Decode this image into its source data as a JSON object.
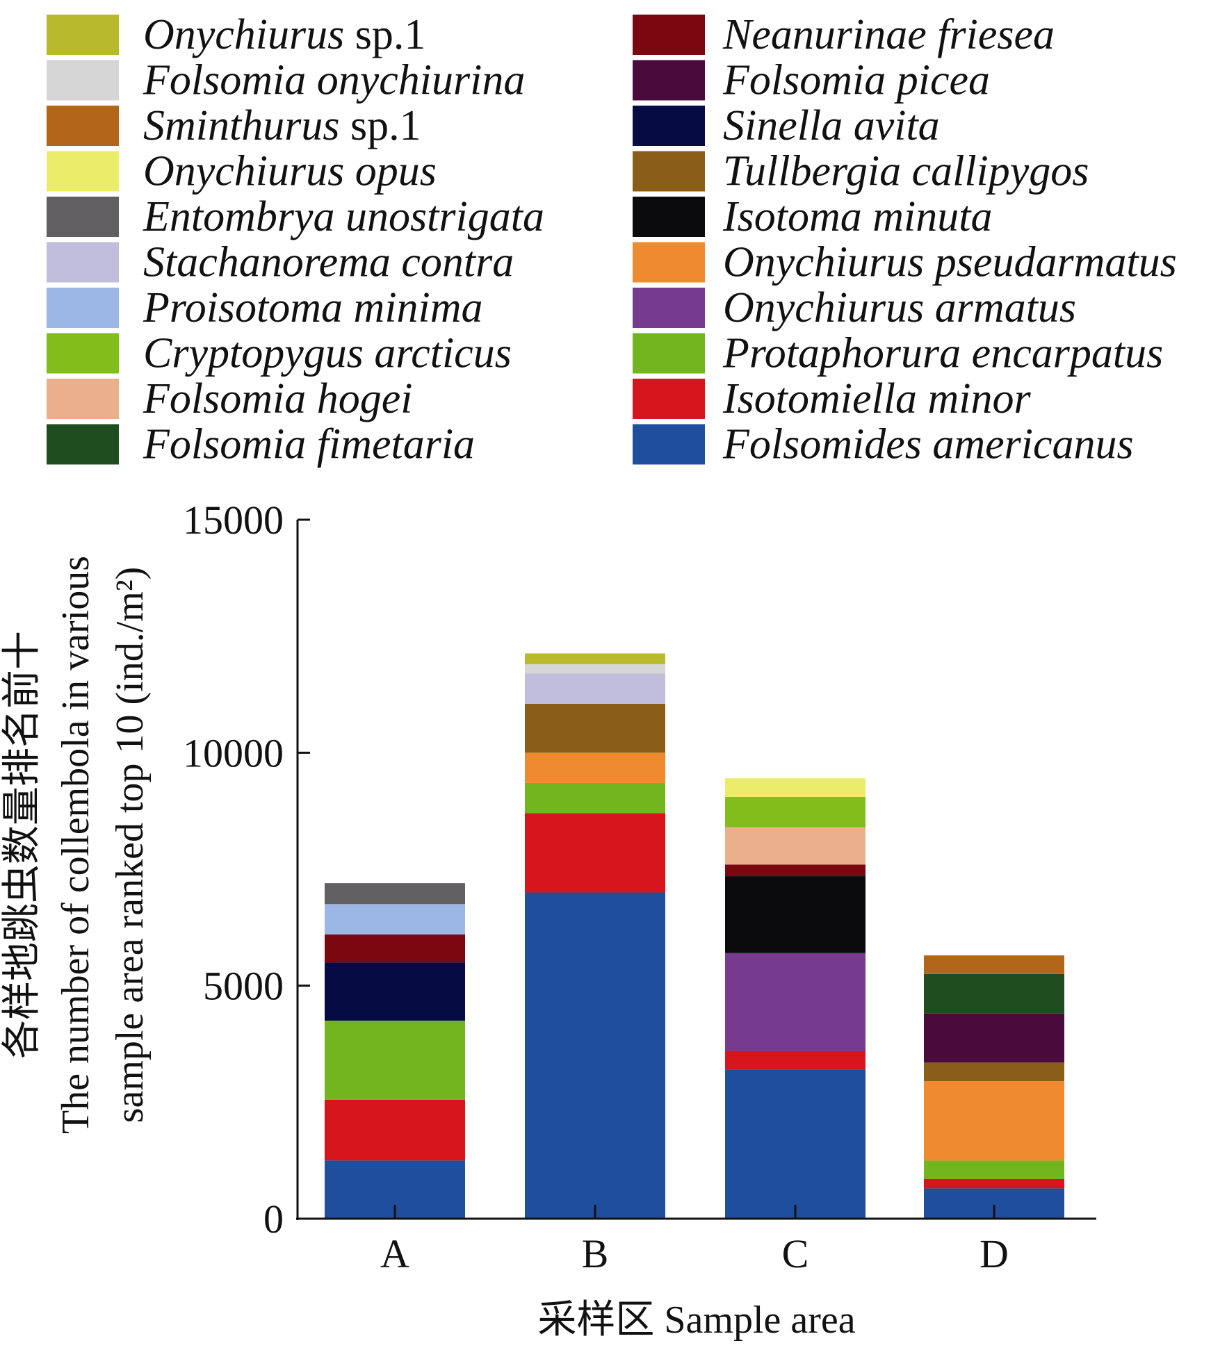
{
  "chart_data": {
    "type": "bar",
    "stacked": true,
    "categories": [
      "A",
      "B",
      "C",
      "D"
    ],
    "xlabel": "采样区 Sample area",
    "ylabel_lines": [
      "各样地跳虫数量排名前十",
      "The number of collembola in various",
      "sample area ranked top 10 (ind./m²)"
    ],
    "ylim": [
      0,
      15000
    ],
    "yticks": [
      0,
      5000,
      10000,
      15000
    ],
    "ytick_labels": [
      "0",
      "5000",
      "10000",
      "15000"
    ],
    "grid": false,
    "legend_position": "top",
    "series": [
      {
        "name": "Folsomides americanus",
        "color": "#1f4e9c",
        "values": [
          1250,
          7000,
          3200,
          650
        ]
      },
      {
        "name": "Isotomiella minor",
        "color": "#d7151c",
        "values": [
          1300,
          1700,
          400,
          200
        ]
      },
      {
        "name": "Protaphorura encarpatus",
        "color": "#72b51e",
        "values": [
          1700,
          650,
          0,
          400
        ]
      },
      {
        "name": "Onychiurus armatus",
        "color": "#763a8e",
        "values": [
          0,
          0,
          2100,
          0
        ]
      },
      {
        "name": "Onychiurus pseudarmatus",
        "color": "#f08a2e",
        "values": [
          0,
          650,
          0,
          1700
        ]
      },
      {
        "name": "Isotoma minuta",
        "color": "#0b0b0e",
        "values": [
          0,
          0,
          1650,
          0
        ]
      },
      {
        "name": "Tullbergia callipygos",
        "color": "#8a5e16",
        "values": [
          0,
          1050,
          0,
          400
        ]
      },
      {
        "name": "Sinella avita",
        "color": "#060b44",
        "values": [
          1250,
          0,
          0,
          0
        ]
      },
      {
        "name": "Folsomia picea",
        "color": "#4a0a3c",
        "values": [
          0,
          0,
          0,
          1050
        ]
      },
      {
        "name": "Neanurinae friesea",
        "color": "#7b0810",
        "values": [
          600,
          0,
          250,
          0
        ]
      },
      {
        "name": "Folsomia fimetaria",
        "color": "#1f4d1f",
        "values": [
          0,
          0,
          0,
          850
        ]
      },
      {
        "name": "Folsomia hogei",
        "color": "#e9b08b",
        "values": [
          0,
          0,
          800,
          0
        ]
      },
      {
        "name": "Cryptopygus arcticus",
        "color": "#82bd1c",
        "values": [
          0,
          0,
          650,
          0
        ]
      },
      {
        "name": "Proisotoma minima",
        "color": "#9db7e4",
        "values": [
          650,
          0,
          0,
          0
        ]
      },
      {
        "name": "Stachanorema contra",
        "color": "#c0bddd",
        "values": [
          0,
          650,
          0,
          0
        ]
      },
      {
        "name": "Entombrya unostrigata",
        "color": "#625f63",
        "values": [
          450,
          0,
          0,
          0
        ]
      },
      {
        "name": "Onychiurus opus",
        "color": "#eaec6a",
        "values": [
          0,
          0,
          400,
          0
        ]
      },
      {
        "name": "Sminthurus sp.1",
        "color": "#b36619",
        "values": [
          0,
          0,
          0,
          400
        ]
      },
      {
        "name": "Folsomia onychiurina",
        "color": "#d6d6d6",
        "values": [
          0,
          200,
          0,
          0
        ]
      },
      {
        "name": "Onychiurus sp.1",
        "color": "#b8b92c",
        "values": [
          0,
          230,
          0,
          0
        ]
      }
    ]
  },
  "legend": {
    "left": [
      {
        "ital": "Onychiurus",
        "rest": " sp.1",
        "color": "#b8b92c"
      },
      {
        "ital": "Folsomia onychiurina",
        "rest": "",
        "color": "#d6d6d6"
      },
      {
        "ital": "Sminthurus",
        "rest": " sp.1",
        "color": "#b36619"
      },
      {
        "ital": "Onychiurus opus",
        "rest": "",
        "color": "#eaec6a"
      },
      {
        "ital": "Entombrya unostrigata",
        "rest": "",
        "color": "#625f63"
      },
      {
        "ital": "Stachanorema contra",
        "rest": "",
        "color": "#c0bddd"
      },
      {
        "ital": "Proisotoma minima",
        "rest": "",
        "color": "#9db7e4"
      },
      {
        "ital": "Cryptopygus arcticus",
        "rest": "",
        "color": "#82bd1c"
      },
      {
        "ital": "Folsomia hogei",
        "rest": "",
        "color": "#e9b08b"
      },
      {
        "ital": "Folsomia fimetaria",
        "rest": "",
        "color": "#1f4d1f"
      }
    ],
    "right": [
      {
        "ital": "Neanurinae friesea",
        "rest": "",
        "color": "#7b0810"
      },
      {
        "ital": "Folsomia picea",
        "rest": "",
        "color": "#4a0a3c"
      },
      {
        "ital": "Sinella avita",
        "rest": "",
        "color": "#060b44"
      },
      {
        "ital": "Tullbergia callipygos",
        "rest": "",
        "color": "#8a5e16"
      },
      {
        "ital": "Isotoma minuta",
        "rest": "",
        "color": "#0b0b0e"
      },
      {
        "ital": "Onychiurus pseudarmatus",
        "rest": "",
        "color": "#f08a2e"
      },
      {
        "ital": "Onychiurus armatus",
        "rest": "",
        "color": "#763a8e"
      },
      {
        "ital": "Protaphorura encarpatus",
        "rest": "",
        "color": "#72b51e"
      },
      {
        "ital": "Isotomiella minor",
        "rest": "",
        "color": "#d7151c"
      },
      {
        "ital": "Folsomides americanus",
        "rest": "",
        "color": "#1f4e9c"
      }
    ]
  }
}
